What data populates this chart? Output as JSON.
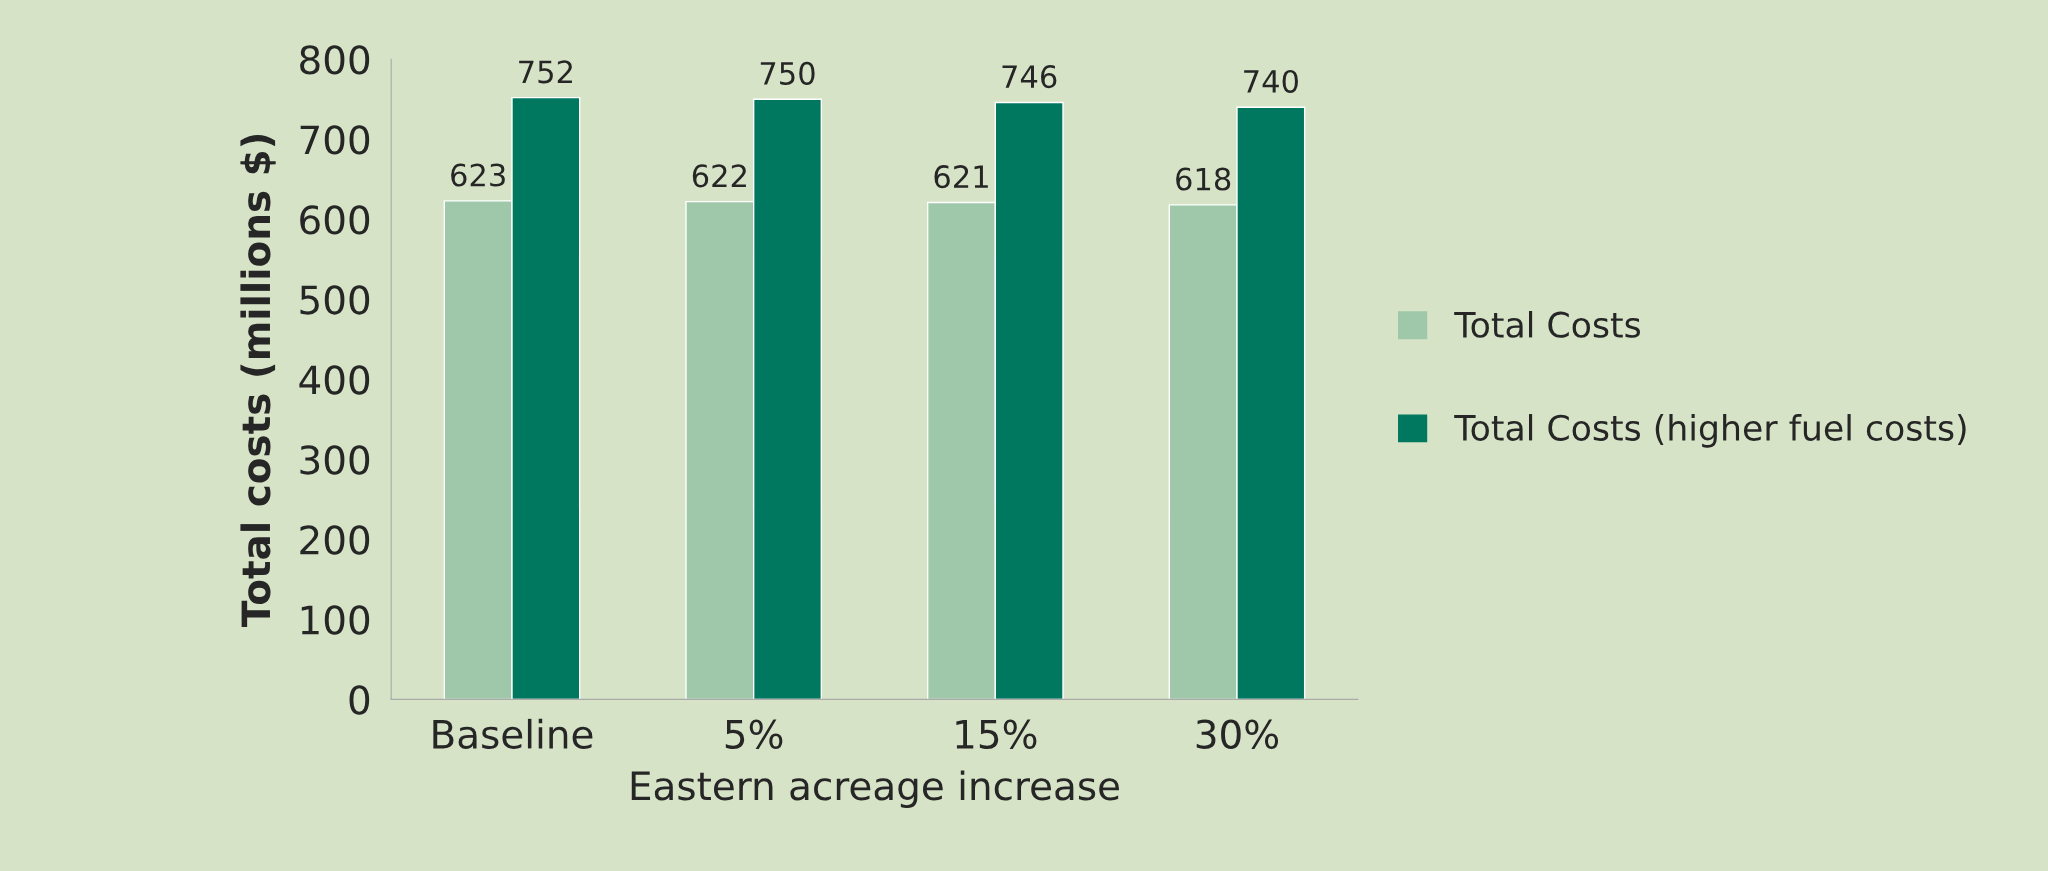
{
  "chart_data": {
    "type": "bar",
    "xlabel": "Eastern acreage increase",
    "ylabel": "Total costs (millions $)",
    "categories": [
      "Baseline",
      "5%",
      "15%",
      "30%"
    ],
    "series": [
      {
        "name": "Total Costs",
        "color": "#9fc8aa",
        "values": [
          623,
          622,
          621,
          618
        ]
      },
      {
        "name": "Total Costs (higher fuel costs)",
        "color": "#00785f",
        "values": [
          752,
          750,
          746,
          740
        ]
      }
    ],
    "ylim": [
      0,
      800
    ],
    "yticks": [
      0,
      100,
      200,
      300,
      400,
      500,
      600,
      700,
      800
    ],
    "data_labels": true,
    "legend": "right",
    "grid": false
  }
}
